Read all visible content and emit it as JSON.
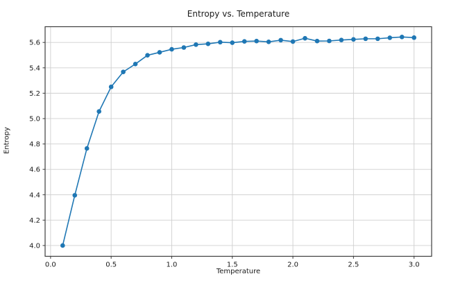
{
  "figure": {
    "background": "#ffffff"
  },
  "chart_data": {
    "type": "line",
    "title": "Entropy vs. Temperature",
    "xlabel": "Temperature",
    "ylabel": "Entropy",
    "x": [
      0.1,
      0.2,
      0.3,
      0.4,
      0.5,
      0.6,
      0.7,
      0.8,
      0.9,
      1.0,
      1.1,
      1.2,
      1.3,
      1.4,
      1.5,
      1.6,
      1.7,
      1.8,
      1.9,
      2.0,
      2.1,
      2.2,
      2.3,
      2.4,
      2.5,
      2.6,
      2.7,
      2.8,
      2.9,
      3.0
    ],
    "series": [
      {
        "name": "Entropy",
        "values": [
          4.0,
          4.396,
          4.765,
          5.056,
          5.25,
          5.368,
          5.43,
          5.499,
          5.522,
          5.546,
          5.56,
          5.583,
          5.589,
          5.602,
          5.598,
          5.608,
          5.611,
          5.605,
          5.618,
          5.607,
          5.633,
          5.611,
          5.612,
          5.619,
          5.624,
          5.629,
          5.629,
          5.637,
          5.643,
          5.638
        ]
      }
    ],
    "xlim": [
      -0.045,
      3.145
    ],
    "ylim": [
      3.915,
      5.724
    ],
    "xticks": [
      0.0,
      0.5,
      1.0,
      1.5,
      2.0,
      2.5,
      3.0
    ],
    "yticks": [
      4.0,
      4.2,
      4.4,
      4.6,
      4.8,
      5.0,
      5.2,
      5.4,
      5.6
    ],
    "tick_decimals": 1,
    "grid": true,
    "legend": "none",
    "line_color": "#1f77b4",
    "marker": "circle",
    "marker_radius": 3.3,
    "line_width": 1.6,
    "grid_color": "#cfcfcf",
    "spine_color": "#3c3c3c",
    "tick_color": "#3c3c3c",
    "text_color": "#1a1a1a"
  }
}
